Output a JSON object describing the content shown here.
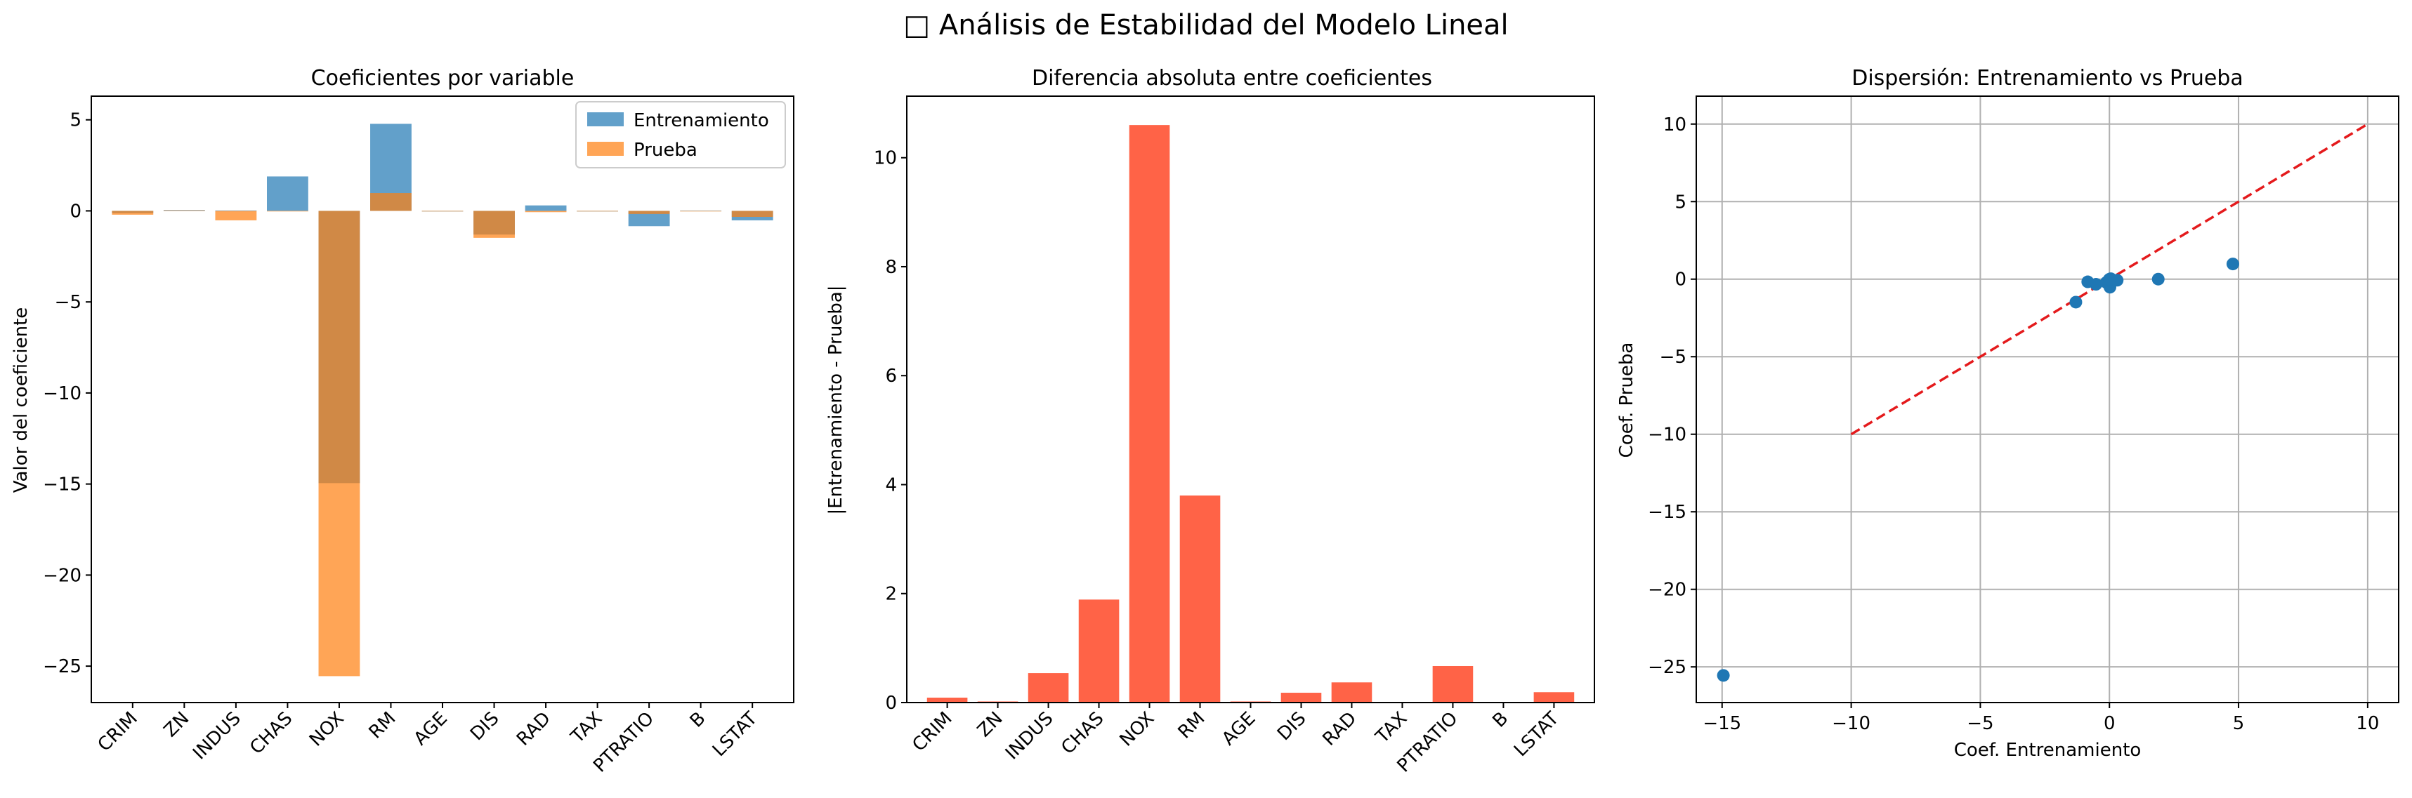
{
  "suptitle": "□ Análisis de Estabilidad del Modelo Lineal",
  "colors": {
    "train": "#1f77b4",
    "test": "#ff7f0e",
    "diff": "#ff6347",
    "ref_line": "#e41a1c",
    "scatter": "#1f77b4",
    "grid": "#b0b0b0"
  },
  "chart_data": [
    {
      "type": "bar",
      "title": "Coeficientes por variable",
      "xlabel": "",
      "ylabel": "Valor del coeficiente",
      "categories": [
        "CRIM",
        "ZN",
        "INDUS",
        "CHAS",
        "NOX",
        "RM",
        "AGE",
        "DIS",
        "RAD",
        "TAX",
        "PTRATIO",
        "B",
        "LSTAT"
      ],
      "series": [
        {
          "name": "Entrenamiento",
          "values": [
            -0.12,
            0.05,
            0.02,
            1.89,
            -14.95,
            4.78,
            0.0,
            -1.3,
            0.3,
            -0.01,
            -0.84,
            0.01,
            -0.52
          ]
        },
        {
          "name": "Prueba",
          "values": [
            -0.21,
            0.03,
            -0.52,
            0.0,
            -25.55,
            0.98,
            -0.02,
            -1.48,
            -0.07,
            -0.02,
            -0.17,
            0.0,
            -0.33
          ]
        }
      ],
      "ylim": [
        -27,
        6.3
      ],
      "yticks": [
        5,
        0,
        -5,
        -10,
        -15,
        -20,
        -25
      ],
      "legend": "top-right",
      "grid": false
    },
    {
      "type": "bar",
      "title": "Diferencia absoluta entre coeficientes",
      "xlabel": "",
      "ylabel": "|Entrenamiento - Prueba|",
      "categories": [
        "CRIM",
        "ZN",
        "INDUS",
        "CHAS",
        "NOX",
        "RM",
        "AGE",
        "DIS",
        "RAD",
        "TAX",
        "PTRATIO",
        "B",
        "LSTAT"
      ],
      "values": [
        0.09,
        0.02,
        0.54,
        1.89,
        10.6,
        3.8,
        0.02,
        0.18,
        0.37,
        0.01,
        0.67,
        0.01,
        0.19
      ],
      "ylim": [
        0,
        11.13
      ],
      "yticks": [
        0,
        2,
        4,
        6,
        8,
        10
      ],
      "grid": false
    },
    {
      "type": "scatter",
      "title": "Dispersión: Entrenamiento vs Prueba",
      "xlabel": "Coef. Entrenamiento",
      "ylabel": "Coef. Prueba",
      "points": [
        {
          "x": -0.12,
          "y": -0.21
        },
        {
          "x": 0.05,
          "y": 0.03
        },
        {
          "x": 0.02,
          "y": -0.52
        },
        {
          "x": 1.89,
          "y": 0.0
        },
        {
          "x": -14.95,
          "y": -25.55
        },
        {
          "x": 4.78,
          "y": 0.98
        },
        {
          "x": 0.0,
          "y": -0.02
        },
        {
          "x": -1.3,
          "y": -1.48
        },
        {
          "x": 0.3,
          "y": -0.07
        },
        {
          "x": -0.01,
          "y": -0.02
        },
        {
          "x": -0.84,
          "y": -0.17
        },
        {
          "x": 0.01,
          "y": 0.0
        },
        {
          "x": -0.52,
          "y": -0.33
        }
      ],
      "reference_line": {
        "x": [
          -10,
          10
        ],
        "y": [
          -10,
          10
        ],
        "style": "dashed"
      },
      "xlim": [
        -16.0,
        11.2
      ],
      "ylim": [
        -27.3,
        11.8
      ],
      "xticks": [
        -15,
        -10,
        -5,
        0,
        5,
        10
      ],
      "yticks": [
        10,
        5,
        0,
        -5,
        -10,
        -15,
        -20,
        -25
      ],
      "grid": true
    }
  ]
}
